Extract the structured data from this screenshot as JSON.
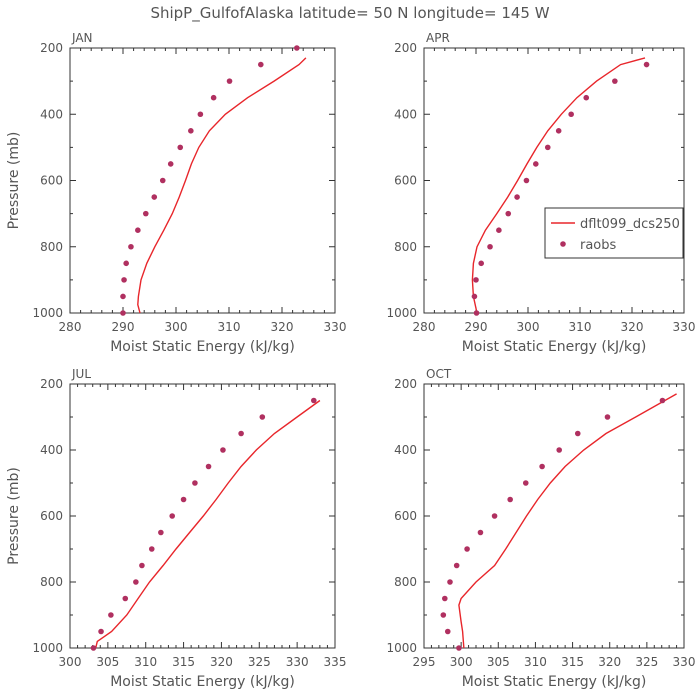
{
  "title": "ShipP_GulfofAlaska   latitude= 50 N longitude= 145 W",
  "colors": {
    "model": "#e8262b",
    "obs": "#b03060",
    "axis": "#333333",
    "text": "#555555"
  },
  "legend": {
    "placement": "right-middle",
    "items": [
      "dflt099_dcs250",
      "raobs"
    ]
  },
  "chart_data": [
    {
      "type": "line",
      "panel": "JAN",
      "xlabel": "Moist Static Energy (kJ/kg)",
      "ylabel": "Pressure (mb)",
      "xlim": [
        280,
        330
      ],
      "ylim": [
        1000,
        200
      ],
      "xticks": [
        280,
        290,
        300,
        310,
        320,
        330
      ],
      "yticks": [
        200,
        400,
        600,
        800,
        1000
      ],
      "series": [
        {
          "name": "dflt099_dcs250",
          "style": "line",
          "x": [
            293.2,
            292.8,
            292.9,
            293.4,
            294.5,
            296.0,
            297.7,
            299.3,
            300.6,
            301.8,
            302.9,
            304.3,
            306.3,
            309.3,
            313.5,
            318.5,
            323.2,
            324.5
          ],
          "y": [
            1000,
            975,
            950,
            900,
            850,
            800,
            750,
            700,
            650,
            600,
            550,
            500,
            450,
            400,
            350,
            300,
            250,
            230
          ]
        },
        {
          "name": "raobs",
          "style": "points",
          "x": [
            290.0,
            290.0,
            290.2,
            290.6,
            291.5,
            292.8,
            294.3,
            295.9,
            297.5,
            299.0,
            300.8,
            302.8,
            304.6,
            307.1,
            310.1,
            316.0,
            322.8
          ],
          "y": [
            1000,
            950,
            900,
            850,
            800,
            750,
            700,
            650,
            600,
            550,
            500,
            450,
            400,
            350,
            300,
            250,
            200
          ]
        }
      ]
    },
    {
      "type": "line",
      "panel": "APR",
      "xlabel": "Moist Static Energy (kJ/kg)",
      "ylabel": "",
      "xlim": [
        280,
        330
      ],
      "ylim": [
        1000,
        200
      ],
      "xticks": [
        280,
        290,
        300,
        310,
        320,
        330
      ],
      "yticks": [
        200,
        400,
        600,
        800,
        1000
      ],
      "series": [
        {
          "name": "dflt099_dcs250",
          "style": "line",
          "x": [
            290.2,
            289.5,
            289.3,
            289.5,
            290.2,
            291.8,
            294.0,
            296.1,
            298.0,
            299.8,
            301.7,
            303.8,
            306.4,
            309.4,
            313.2,
            317.8,
            322.5
          ],
          "y": [
            1000,
            950,
            900,
            850,
            800,
            750,
            700,
            650,
            600,
            550,
            500,
            450,
            400,
            350,
            300,
            250,
            230
          ]
        },
        {
          "name": "raobs",
          "style": "points",
          "x": [
            290.1,
            289.7,
            290.0,
            291.0,
            292.7,
            294.4,
            296.2,
            297.9,
            299.7,
            301.5,
            303.8,
            305.9,
            308.3,
            311.2,
            316.7,
            322.8
          ],
          "y": [
            1000,
            950,
            900,
            850,
            800,
            750,
            700,
            650,
            600,
            550,
            500,
            450,
            400,
            350,
            300,
            250
          ]
        }
      ]
    },
    {
      "type": "line",
      "panel": "JUL",
      "xlabel": "Moist Static Energy (kJ/kg)",
      "ylabel": "Pressure (mb)",
      "xlim": [
        300,
        335
      ],
      "ylim": [
        1000,
        200
      ],
      "xticks": [
        300,
        305,
        310,
        315,
        320,
        325,
        330,
        335
      ],
      "yticks": [
        200,
        400,
        600,
        800,
        1000
      ],
      "series": [
        {
          "name": "dflt099_dcs250",
          "style": "line",
          "x": [
            303.4,
            303.6,
            305.5,
            307.5,
            309.0,
            310.5,
            312.3,
            314.0,
            315.8,
            317.6,
            319.3,
            320.9,
            322.6,
            324.6,
            327.0,
            330.0,
            333.0
          ],
          "y": [
            1000,
            980,
            950,
            900,
            850,
            800,
            750,
            700,
            650,
            600,
            550,
            500,
            450,
            400,
            350,
            300,
            250
          ]
        },
        {
          "name": "raobs",
          "style": "points",
          "x": [
            303.1,
            304.1,
            305.4,
            307.3,
            308.7,
            309.5,
            310.8,
            312.0,
            313.5,
            315.0,
            316.5,
            318.3,
            320.2,
            322.6,
            325.4,
            332.2
          ],
          "y": [
            1000,
            950,
            900,
            850,
            800,
            750,
            700,
            650,
            600,
            550,
            500,
            450,
            400,
            350,
            300,
            250
          ]
        }
      ]
    },
    {
      "type": "line",
      "panel": "OCT",
      "xlabel": "Moist Static Energy (kJ/kg)",
      "ylabel": "",
      "xlim": [
        295,
        330
      ],
      "ylim": [
        1000,
        200
      ],
      "xticks": [
        295,
        300,
        305,
        310,
        315,
        320,
        325,
        330
      ],
      "yticks": [
        200,
        400,
        600,
        800,
        1000
      ],
      "series": [
        {
          "name": "dflt099_dcs250",
          "style": "line",
          "x": [
            300.4,
            300.2,
            300.0,
            299.7,
            300.0,
            302.0,
            304.5,
            306.0,
            307.4,
            308.8,
            310.3,
            312.0,
            314.0,
            316.5,
            319.5,
            323.5,
            329.0
          ],
          "y": [
            1010,
            950,
            920,
            870,
            850,
            800,
            750,
            700,
            650,
            600,
            550,
            500,
            450,
            400,
            350,
            300,
            230
          ]
        },
        {
          "name": "raobs",
          "style": "points",
          "x": [
            299.7,
            298.2,
            297.6,
            297.8,
            298.5,
            299.4,
            300.8,
            302.6,
            304.5,
            306.6,
            308.7,
            310.9,
            313.2,
            315.7,
            319.7,
            327.1
          ],
          "y": [
            1000,
            950,
            900,
            850,
            800,
            750,
            700,
            650,
            600,
            550,
            500,
            450,
            400,
            350,
            300,
            250
          ]
        }
      ]
    }
  ]
}
